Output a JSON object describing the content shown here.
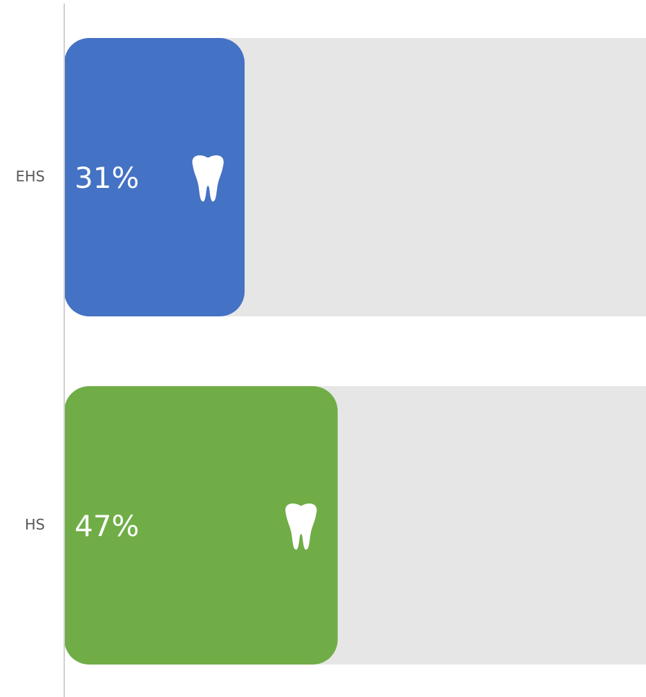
{
  "chart_data": {
    "type": "bar",
    "orientation": "horizontal",
    "categories": [
      "EHS",
      "HS"
    ],
    "values": [
      31,
      47
    ],
    "value_labels": [
      "31%",
      "47%"
    ],
    "colors": [
      "#4472c4",
      "#70ad47"
    ],
    "xlim": [
      0,
      100
    ]
  }
}
